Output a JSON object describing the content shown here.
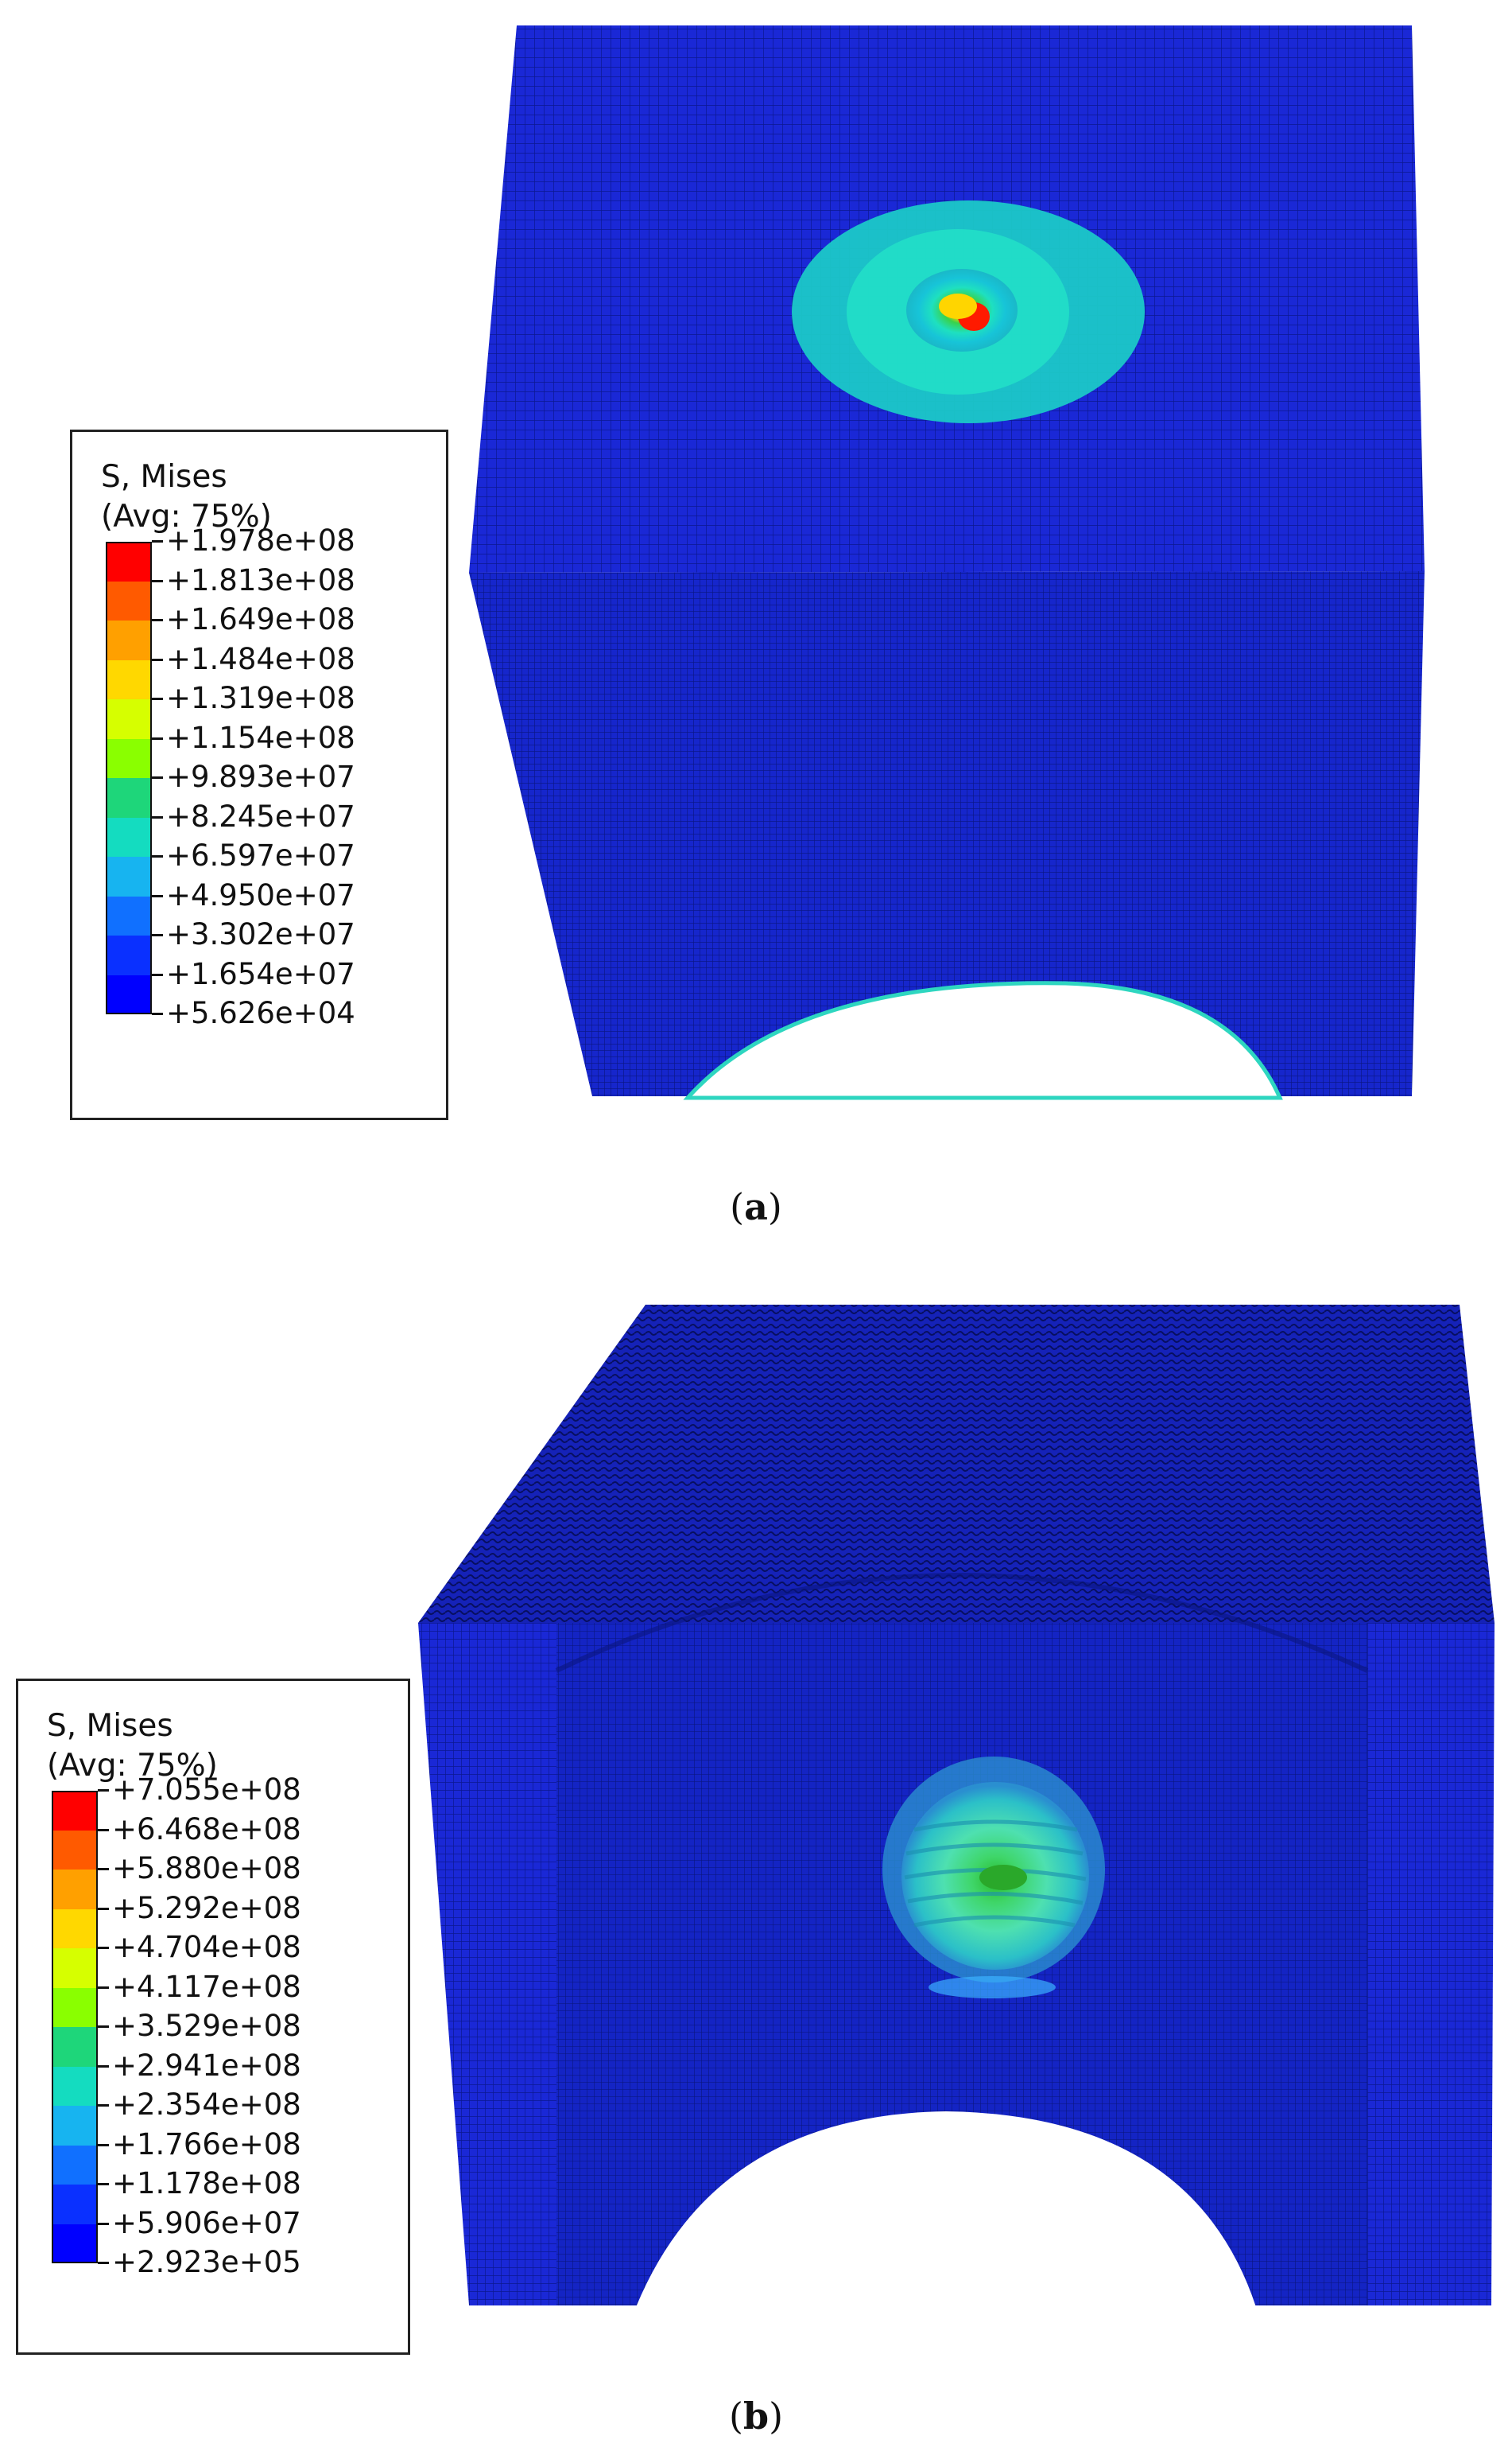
{
  "panels": [
    {
      "caption_letter": "a",
      "legend": {
        "title_line1": "S, Mises",
        "title_line2": "(Avg: 75%)",
        "labels": [
          "+1.978e+08",
          "+1.813e+08",
          "+1.649e+08",
          "+1.484e+08",
          "+1.319e+08",
          "+1.154e+08",
          "+9.893e+07",
          "+8.245e+07",
          "+6.597e+07",
          "+4.950e+07",
          "+3.302e+07",
          "+1.654e+07",
          "+5.626e+04"
        ]
      }
    },
    {
      "caption_letter": "b",
      "legend": {
        "title_line1": "S, Mises",
        "title_line2": "(Avg: 75%)",
        "labels": [
          "+7.055e+08",
          "+6.468e+08",
          "+5.880e+08",
          "+5.292e+08",
          "+4.704e+08",
          "+4.117e+08",
          "+3.529e+08",
          "+2.941e+08",
          "+2.354e+08",
          "+1.766e+08",
          "+1.178e+08",
          "+5.906e+07",
          "+2.923e+05"
        ]
      }
    }
  ],
  "colors": {
    "scale": [
      "#ff0000",
      "#ff5a00",
      "#ffa000",
      "#ffd800",
      "#d6ff00",
      "#8aff00",
      "#2ee01a",
      "#1ed67a",
      "#14dcc0",
      "#17b4f0",
      "#1070ff",
      "#0a30ff",
      "#0000ff"
    ],
    "mesh_blue": "#1a26d8",
    "mesh_dark": "#0d1a9e"
  }
}
